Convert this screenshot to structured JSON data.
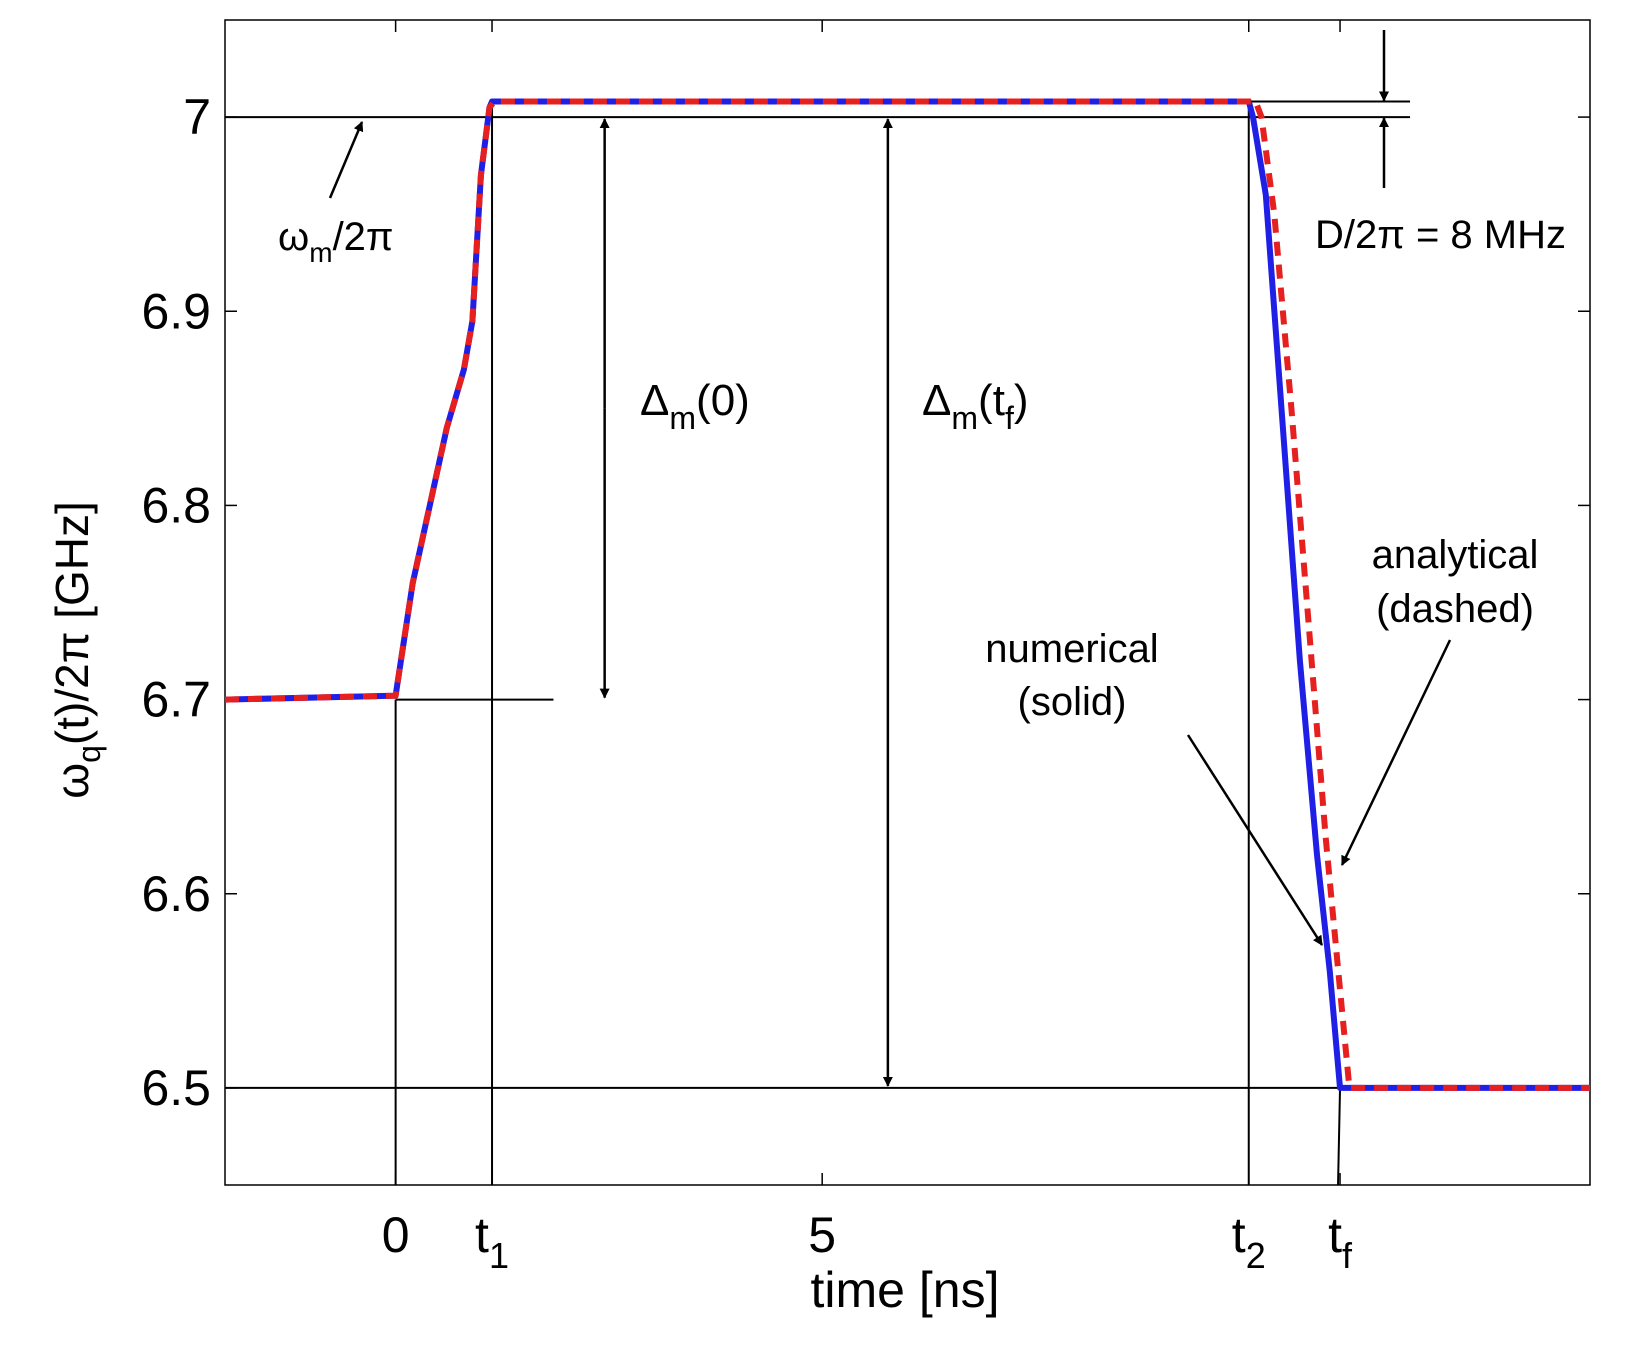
{
  "chart_data": {
    "type": "line",
    "xlabel": "time [ns]",
    "ylabel_main": "ω",
    "ylabel_sub": "q",
    "ylabel_rest": "(t)/2π [GHz]",
    "xlim": [
      -2,
      14
    ],
    "ylim": [
      6.45,
      7.05
    ],
    "grid": false,
    "y_ticks": [
      {
        "value": 6.5,
        "label": "6.5"
      },
      {
        "value": 6.6,
        "label": "6.6"
      },
      {
        "value": 6.7,
        "label": "6.7"
      },
      {
        "value": 6.8,
        "label": "6.8"
      },
      {
        "value": 6.9,
        "label": "6.9"
      },
      {
        "value": 7.0,
        "label": "7"
      }
    ],
    "x_ticks": [
      {
        "value": 0,
        "label": "0",
        "sub": ""
      },
      {
        "value": 1.13,
        "label": "t",
        "sub": "1"
      },
      {
        "value": 5,
        "label": "5",
        "sub": ""
      },
      {
        "value": 10,
        "label": "t",
        "sub": "2"
      },
      {
        "value": 11.07,
        "label": "t",
        "sub": "f"
      }
    ],
    "series": [
      {
        "style": "solid",
        "color": "#1f1fe6",
        "x": [
          -2,
          0,
          0.2,
          0.4,
          0.6,
          0.8,
          0.9,
          1.0,
          1.1,
          1.13,
          10.0,
          10.05,
          10.2,
          10.4,
          10.6,
          10.8,
          10.95,
          11.07,
          14
        ],
        "y": [
          6.7,
          6.702,
          6.76,
          6.8,
          6.84,
          6.87,
          6.895,
          6.97,
          7.005,
          7.008,
          7.008,
          7.0,
          6.96,
          6.84,
          6.72,
          6.62,
          6.56,
          6.5,
          6.5
        ]
      },
      {
        "style": "dashed",
        "color": "#e61f1f",
        "x": [
          -2,
          0,
          0.2,
          0.4,
          0.6,
          0.8,
          0.9,
          1.0,
          1.1,
          1.16,
          10.08,
          10.15,
          10.3,
          10.5,
          10.7,
          10.9,
          11.05,
          11.18,
          14
        ],
        "y": [
          6.7,
          6.702,
          6.76,
          6.8,
          6.84,
          6.87,
          6.895,
          6.97,
          7.005,
          7.008,
          7.008,
          7.0,
          6.95,
          6.85,
          6.74,
          6.63,
          6.56,
          6.5,
          6.5
        ]
      }
    ],
    "annotations": {
      "omega_m_main": "ω",
      "omega_m_sub": "m",
      "omega_m_rest": "/2π",
      "delta0_main": "Δ",
      "delta0_sub": "m",
      "delta0_rest": "(0)",
      "deltatf_main": "Δ",
      "deltatf_sub": "m",
      "deltatf_open": "(t",
      "deltatf_sub2": "f",
      "deltatf_close": ")",
      "D_label": "D/2π = 8 MHz",
      "numerical_line1": "numerical",
      "numerical_line2": "(solid)",
      "analytical_line1": "analytical",
      "analytical_line2": "(dashed)"
    }
  }
}
